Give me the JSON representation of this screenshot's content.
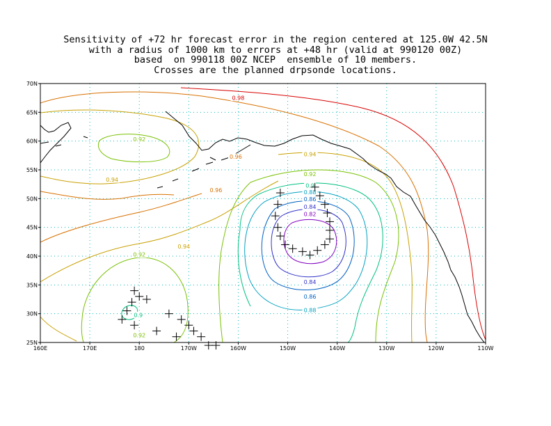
{
  "title_lines": [
    "Sensitivity of +72 hr forecast error in the region centered at 125.0W 42.5N",
    "with a radius of 1000 km to errors at +48 hr (valid at 990120 00Z)",
    "based  on 990118 00Z NCEP  ensemble of 10 members.",
    "Crosses are the planned drpsonde locations."
  ],
  "map": {
    "lon_range": [
      160,
      250
    ],
    "lat_range": [
      25,
      70
    ],
    "x_ticks": [
      {
        "lon": 160,
        "label": "160E"
      },
      {
        "lon": 170,
        "label": "170E"
      },
      {
        "lon": 180,
        "label": "180"
      },
      {
        "lon": 190,
        "label": "170W"
      },
      {
        "lon": 200,
        "label": "160W"
      },
      {
        "lon": 210,
        "label": "150W"
      },
      {
        "lon": 220,
        "label": "140W"
      },
      {
        "lon": 230,
        "label": "130W"
      },
      {
        "lon": 240,
        "label": "120W"
      },
      {
        "lon": 250,
        "label": "110W"
      }
    ],
    "y_ticks": [
      {
        "lat": 25,
        "label": "25N"
      },
      {
        "lat": 30,
        "label": "30N"
      },
      {
        "lat": 35,
        "label": "35N"
      },
      {
        "lat": 40,
        "label": "40N"
      },
      {
        "lat": 45,
        "label": "45N"
      },
      {
        "lat": 50,
        "label": "50N"
      },
      {
        "lat": 55,
        "label": "55N"
      },
      {
        "lat": 60,
        "label": "60N"
      },
      {
        "lat": 65,
        "label": "65N"
      },
      {
        "lat": 70,
        "label": "70N"
      }
    ],
    "grid": "dotted",
    "grid_color": "#00b8b8",
    "contour_labels": [
      {
        "text": "0.98",
        "lon": 200,
        "lat": 67.5,
        "color": "#d80000"
      },
      {
        "text": "0.96",
        "lon": 199.5,
        "lat": 57.3,
        "color": "#d87000"
      },
      {
        "text": "0.96",
        "lon": 195.5,
        "lat": 51.5,
        "color": "#d87000"
      },
      {
        "text": "0.94",
        "lon": 214.5,
        "lat": 57.7,
        "color": "#c8a000"
      },
      {
        "text": "0.94",
        "lon": 174.5,
        "lat": 53.3,
        "color": "#c8a000"
      },
      {
        "text": "0.94",
        "lon": 189,
        "lat": 41.7,
        "color": "#c8a000"
      },
      {
        "text": "0.92",
        "lon": 180,
        "lat": 60.3,
        "color": "#78c000"
      },
      {
        "text": "0.92",
        "lon": 214.5,
        "lat": 54.3,
        "color": "#78c000"
      },
      {
        "text": "0.92",
        "lon": 180,
        "lat": 40.3,
        "color": "#78c000"
      },
      {
        "text": "0.92",
        "lon": 180,
        "lat": 26.3,
        "color": "#78c000"
      },
      {
        "text": "0.9",
        "lon": 214.5,
        "lat": 52.3,
        "color": "#00c080"
      },
      {
        "text": "0.9",
        "lon": 179.8,
        "lat": 29.8,
        "color": "#00c080"
      },
      {
        "text": "0.88",
        "lon": 214.5,
        "lat": 51.1,
        "color": "#00a0c0"
      },
      {
        "text": "0.88",
        "lon": 214.5,
        "lat": 30.6,
        "color": "#00a0c0"
      },
      {
        "text": "0.86",
        "lon": 214.5,
        "lat": 49.9,
        "color": "#0060c0"
      },
      {
        "text": "0.86",
        "lon": 214.5,
        "lat": 33.0,
        "color": "#0060c0"
      },
      {
        "text": "0.84",
        "lon": 214.5,
        "lat": 48.6,
        "color": "#3030c8"
      },
      {
        "text": "0.84",
        "lon": 214.5,
        "lat": 35.5,
        "color": "#3030c8"
      },
      {
        "text": "0.82",
        "lon": 214.5,
        "lat": 47.3,
        "color": "#8000c0"
      }
    ],
    "dropsondes": [
      [
        208.5,
        51
      ],
      [
        208,
        49
      ],
      [
        207.5,
        47
      ],
      [
        208,
        45
      ],
      [
        208.5,
        43.5
      ],
      [
        209.5,
        42
      ],
      [
        211,
        41.3
      ],
      [
        213,
        40.8
      ],
      [
        214.5,
        40.2
      ],
      [
        216,
        41
      ],
      [
        217.5,
        42
      ],
      [
        218.5,
        43
      ],
      [
        218.5,
        44.5
      ],
      [
        218.5,
        46
      ],
      [
        218,
        47.5
      ],
      [
        217.5,
        49
      ],
      [
        216.5,
        50.5
      ],
      [
        215.5,
        52
      ],
      [
        179,
        34
      ],
      [
        180,
        33
      ],
      [
        178.5,
        32
      ],
      [
        177.5,
        30.5
      ],
      [
        176.5,
        29
      ],
      [
        179,
        28
      ],
      [
        181.5,
        32.5
      ],
      [
        183.5,
        27
      ],
      [
        186,
        30
      ],
      [
        187.5,
        26
      ],
      [
        188.5,
        29
      ],
      [
        190,
        28
      ],
      [
        191,
        27
      ],
      [
        192.5,
        26
      ],
      [
        194,
        24.5
      ],
      [
        195.5,
        24.5
      ]
    ]
  }
}
